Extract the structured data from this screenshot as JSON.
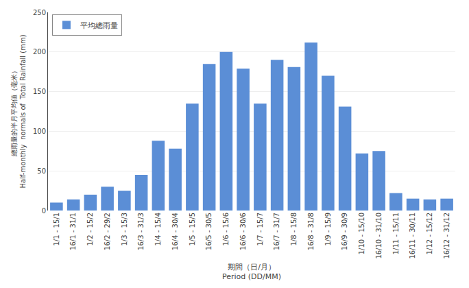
{
  "chart_data": {
    "type": "bar",
    "categories": [
      "1/1 - 15/1",
      "16/1 - 31/1",
      "1/2 - 15/2",
      "16/2 - 29/2",
      "1/3 - 15/3",
      "16/3 - 31/3",
      "1/4 - 15/4",
      "16/4 - 30/4",
      "1/5 - 15/5",
      "16/5 - 30/5",
      "1/6 - 15/6",
      "16/6 - 30/6",
      "1/7 - 15/7",
      "16/7 - 31/7",
      "1/8 - 15/8",
      "16/8 - 31/8",
      "1/9 - 15/9",
      "16/9 - 30/9",
      "1/10 - 15/10",
      "16/10 - 31/10",
      "1/11 - 15/11",
      "16/11 - 30/11",
      "1/12 - 15/12",
      "16/12 - 31/12"
    ],
    "series": [
      {
        "name": "平均總雨量",
        "color": "#5B8ED6",
        "values": [
          10,
          14,
          20,
          30,
          25,
          45,
          88,
          78,
          135,
          185,
          200,
          179,
          135,
          190,
          181,
          212,
          170,
          131,
          72,
          75,
          22,
          15,
          14,
          15
        ]
      }
    ],
    "xlabel": [
      "期間（日/月）",
      "Period (DD/MM)"
    ],
    "ylabel": [
      "總雨量的半月平均値（毫米）",
      "Half-monthly  normals of  Total Rainfall (mm)"
    ],
    "ylim": [
      0,
      250
    ],
    "yticks": [
      0,
      50,
      100,
      150,
      200,
      250
    ],
    "grid": true,
    "legend": "upper left"
  }
}
